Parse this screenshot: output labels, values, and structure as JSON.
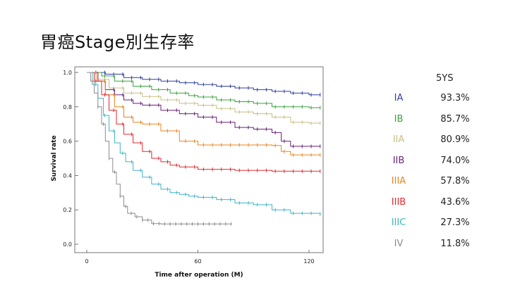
{
  "title": "胃癌Stage別生存率",
  "legend_header": "5YS",
  "chart_data": {
    "type": "line",
    "title": "",
    "xlabel": "Time after operation (M)",
    "ylabel": "Survival rate",
    "xlim": [
      0,
      126
    ],
    "ylim": [
      0,
      1.0
    ],
    "x_ticks": [
      0,
      60,
      120
    ],
    "y_ticks": [
      0.0,
      0.2,
      0.4,
      0.6,
      0.8,
      1.0
    ],
    "series": [
      {
        "name": "IA",
        "five_year_survival": "93.3%",
        "color": "#2f3f9e",
        "points": [
          [
            0,
            1.0
          ],
          [
            10,
            0.99
          ],
          [
            20,
            0.97
          ],
          [
            30,
            0.96
          ],
          [
            40,
            0.95
          ],
          [
            50,
            0.94
          ],
          [
            60,
            0.93
          ],
          [
            70,
            0.92
          ],
          [
            80,
            0.91
          ],
          [
            90,
            0.9
          ],
          [
            100,
            0.89
          ],
          [
            110,
            0.88
          ],
          [
            120,
            0.87
          ],
          [
            126,
            0.87
          ]
        ]
      },
      {
        "name": "IB",
        "five_year_survival": "85.7%",
        "color": "#3aa33c",
        "points": [
          [
            0,
            1.0
          ],
          [
            8,
            0.98
          ],
          [
            15,
            0.95
          ],
          [
            25,
            0.92
          ],
          [
            35,
            0.9
          ],
          [
            45,
            0.88
          ],
          [
            55,
            0.865
          ],
          [
            60,
            0.857
          ],
          [
            70,
            0.84
          ],
          [
            80,
            0.83
          ],
          [
            90,
            0.82
          ],
          [
            100,
            0.8
          ],
          [
            110,
            0.8
          ],
          [
            120,
            0.795
          ],
          [
            126,
            0.795
          ]
        ]
      },
      {
        "name": "IIA",
        "five_year_survival": "80.9%",
        "color": "#c8bf84",
        "points": [
          [
            0,
            1.0
          ],
          [
            6,
            0.96
          ],
          [
            12,
            0.91
          ],
          [
            20,
            0.88
          ],
          [
            30,
            0.86
          ],
          [
            40,
            0.84
          ],
          [
            50,
            0.82
          ],
          [
            60,
            0.809
          ],
          [
            70,
            0.79
          ],
          [
            80,
            0.77
          ],
          [
            90,
            0.76
          ],
          [
            100,
            0.74
          ],
          [
            110,
            0.71
          ],
          [
            120,
            0.705
          ],
          [
            126,
            0.705
          ]
        ]
      },
      {
        "name": "IIB",
        "five_year_survival": "74.0%",
        "color": "#6a1f7a",
        "points": [
          [
            0,
            1.0
          ],
          [
            6,
            0.95
          ],
          [
            10,
            0.9
          ],
          [
            15,
            0.87
          ],
          [
            20,
            0.84
          ],
          [
            25,
            0.82
          ],
          [
            30,
            0.81
          ],
          [
            40,
            0.78
          ],
          [
            50,
            0.76
          ],
          [
            60,
            0.74
          ],
          [
            70,
            0.71
          ],
          [
            80,
            0.68
          ],
          [
            90,
            0.67
          ],
          [
            100,
            0.65
          ],
          [
            105,
            0.6
          ],
          [
            110,
            0.57
          ],
          [
            126,
            0.57
          ]
        ]
      },
      {
        "name": "IIIA",
        "five_year_survival": "57.8%",
        "color": "#e8861f",
        "points": [
          [
            0,
            1.0
          ],
          [
            5,
            0.95
          ],
          [
            10,
            0.87
          ],
          [
            15,
            0.8
          ],
          [
            20,
            0.74
          ],
          [
            25,
            0.71
          ],
          [
            30,
            0.7
          ],
          [
            40,
            0.66
          ],
          [
            50,
            0.6
          ],
          [
            60,
            0.578
          ],
          [
            80,
            0.578
          ],
          [
            100,
            0.575
          ],
          [
            105,
            0.54
          ],
          [
            110,
            0.52
          ],
          [
            126,
            0.52
          ]
        ]
      },
      {
        "name": "IIIB",
        "five_year_survival": "43.6%",
        "color": "#e02a2e",
        "points": [
          [
            0,
            1.0
          ],
          [
            4,
            0.95
          ],
          [
            8,
            0.87
          ],
          [
            12,
            0.78
          ],
          [
            16,
            0.7
          ],
          [
            20,
            0.64
          ],
          [
            25,
            0.59
          ],
          [
            30,
            0.54
          ],
          [
            35,
            0.5
          ],
          [
            40,
            0.48
          ],
          [
            45,
            0.46
          ],
          [
            50,
            0.45
          ],
          [
            60,
            0.436
          ],
          [
            80,
            0.43
          ],
          [
            100,
            0.425
          ],
          [
            126,
            0.425
          ]
        ]
      },
      {
        "name": "IIIC",
        "five_year_survival": "27.3%",
        "color": "#3fb4c6",
        "points": [
          [
            0,
            1.0
          ],
          [
            3,
            0.93
          ],
          [
            6,
            0.85
          ],
          [
            9,
            0.75
          ],
          [
            12,
            0.66
          ],
          [
            15,
            0.59
          ],
          [
            18,
            0.53
          ],
          [
            21,
            0.48
          ],
          [
            25,
            0.43
          ],
          [
            30,
            0.39
          ],
          [
            35,
            0.35
          ],
          [
            40,
            0.32
          ],
          [
            45,
            0.3
          ],
          [
            50,
            0.29
          ],
          [
            55,
            0.28
          ],
          [
            60,
            0.273
          ],
          [
            70,
            0.26
          ],
          [
            80,
            0.24
          ],
          [
            90,
            0.23
          ],
          [
            100,
            0.2
          ],
          [
            110,
            0.18
          ],
          [
            126,
            0.175
          ]
        ]
      },
      {
        "name": "IV",
        "five_year_survival": "11.8%",
        "color": "#8c8c8c",
        "points": [
          [
            0,
            1.0
          ],
          [
            2,
            0.95
          ],
          [
            4,
            0.88
          ],
          [
            6,
            0.8
          ],
          [
            8,
            0.7
          ],
          [
            10,
            0.6
          ],
          [
            12,
            0.5
          ],
          [
            14,
            0.42
          ],
          [
            16,
            0.35
          ],
          [
            18,
            0.28
          ],
          [
            20,
            0.22
          ],
          [
            22,
            0.18
          ],
          [
            26,
            0.16
          ],
          [
            30,
            0.14
          ],
          [
            35,
            0.12
          ],
          [
            40,
            0.118
          ],
          [
            60,
            0.118
          ],
          [
            78,
            0.118
          ]
        ]
      }
    ]
  }
}
